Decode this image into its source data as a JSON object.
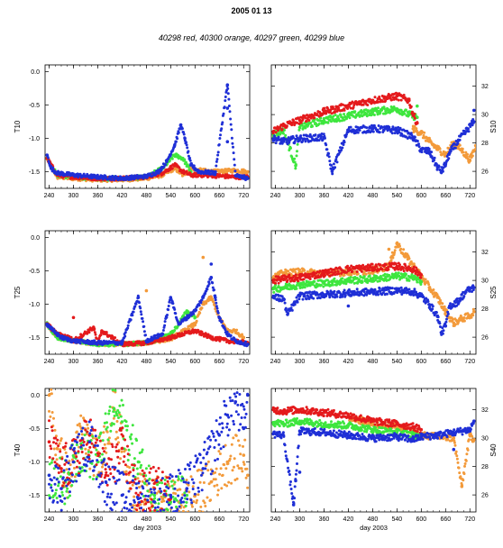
{
  "title": "2005 01 13",
  "subtitle": "40298 red, 40300 orange, 40297 green, 40299 blue",
  "series_colors": {
    "40298": "#e41a1c",
    "40300": "#f39a3a",
    "40297": "#3ee63e",
    "40299": "#1f2fd6"
  },
  "x_ticks": [
    "240",
    "300",
    "360",
    "420",
    "480",
    "540",
    "600",
    "660",
    "720"
  ],
  "x_label": "day 2003",
  "chart_data": [
    {
      "type": "scatter",
      "panel": "T10",
      "ylabel": "T10",
      "xlabel": "",
      "xlim": [
        230,
        735
      ],
      "ylim": [
        -1.75,
        0.1
      ],
      "yticks": [
        "0.0",
        "-0.5",
        "-1.0",
        "-1.5"
      ],
      "y_axis_side": "left",
      "series": [
        {
          "name": "40298",
          "x": [
            235,
            260,
            300,
            360,
            420,
            480,
            520,
            550,
            570,
            590,
            610,
            650,
            700,
            730
          ],
          "y": [
            -1.3,
            -1.55,
            -1.58,
            -1.6,
            -1.6,
            -1.58,
            -1.52,
            -1.4,
            -1.5,
            -1.55,
            -1.55,
            -1.56,
            -1.58,
            -1.58
          ]
        },
        {
          "name": "40300",
          "x": [
            235,
            260,
            300,
            360,
            420,
            480,
            520,
            550,
            570,
            590,
            610,
            650,
            700,
            730
          ],
          "y": [
            -1.3,
            -1.58,
            -1.6,
            -1.62,
            -1.62,
            -1.6,
            -1.55,
            -1.45,
            -1.55,
            -1.45,
            -1.48,
            -1.5,
            -1.48,
            -1.5
          ]
        },
        {
          "name": "40297",
          "x": [
            235,
            260,
            300,
            360,
            420,
            480,
            520,
            550,
            570,
            590
          ],
          "y": [
            -1.3,
            -1.55,
            -1.58,
            -1.6,
            -1.6,
            -1.58,
            -1.45,
            -1.25,
            -1.3,
            -1.5
          ]
        },
        {
          "name": "40299",
          "x": [
            235,
            245,
            260,
            300,
            360,
            420,
            480,
            510,
            530,
            550,
            565,
            575,
            590,
            610,
            650,
            700,
            730,
            680,
            680,
            680
          ],
          "y": [
            -1.25,
            -1.45,
            -1.52,
            -1.55,
            -1.58,
            -1.6,
            -1.57,
            -1.5,
            -1.35,
            -1.1,
            -0.8,
            -1.0,
            -1.4,
            -1.5,
            -1.52,
            -1.56,
            -1.6,
            -0.2,
            -0.55,
            -1.05
          ]
        }
      ]
    },
    {
      "type": "scatter",
      "panel": "S10",
      "ylabel": "S10",
      "xlabel": "",
      "xlim": [
        230,
        735
      ],
      "ylim": [
        24.8,
        33.5
      ],
      "yticks": [
        "32",
        "30",
        "28",
        "26"
      ],
      "y_axis_side": "right",
      "series": [
        {
          "name": "40298",
          "x": [
            235,
            260,
            300,
            360,
            420,
            480,
            540,
            570,
            580,
            590
          ],
          "y": [
            28.8,
            29.2,
            29.6,
            30.2,
            30.6,
            31,
            31.3,
            31,
            30,
            29.4
          ]
        },
        {
          "name": "40300",
          "x": [
            580,
            600,
            620,
            640,
            660,
            680,
            700,
            720,
            735
          ],
          "y": [
            29,
            28.7,
            28.1,
            27.6,
            27.2,
            28,
            27.5,
            26.8,
            27.8
          ]
        },
        {
          "name": "40297",
          "x": [
            235,
            260,
            300,
            360,
            420,
            480,
            540,
            570,
            590,
            590,
            290
          ],
          "y": [
            28.6,
            28.9,
            29.1,
            29.6,
            29.9,
            30.2,
            30.4,
            30,
            29.8,
            30.6,
            26.4
          ]
        },
        {
          "name": "40299",
          "x": [
            235,
            260,
            300,
            360,
            420,
            480,
            540,
            580,
            600,
            620,
            640,
            650,
            660,
            670,
            690,
            710,
            730,
            380,
            730
          ],
          "y": [
            28.3,
            28.1,
            28.3,
            28.4,
            28.9,
            29,
            28.9,
            28.4,
            27.5,
            27.4,
            26.3,
            26,
            26.5,
            27.3,
            28.1,
            28.8,
            29.5,
            26,
            30.3
          ]
        }
      ]
    },
    {
      "type": "scatter",
      "panel": "T25",
      "ylabel": "T25",
      "xlabel": "",
      "xlim": [
        230,
        735
      ],
      "ylim": [
        -1.75,
        0.1
      ],
      "yticks": [
        "0.0",
        "-0.5",
        "-1.0",
        "-1.5"
      ],
      "y_axis_side": "left",
      "series": [
        {
          "name": "40298",
          "x": [
            235,
            260,
            290,
            300,
            360,
            420,
            480,
            540,
            600,
            640,
            680,
            730,
            350,
            370,
            300
          ],
          "y": [
            -1.3,
            -1.45,
            -1.5,
            -1.55,
            -1.6,
            -1.6,
            -1.58,
            -1.5,
            -1.4,
            -1.5,
            -1.55,
            -1.58,
            -1.35,
            -1.4,
            -1.2
          ]
        },
        {
          "name": "40300",
          "x": [
            235,
            260,
            300,
            360,
            420,
            480,
            540,
            600,
            620,
            640,
            660,
            680,
            700,
            720,
            480,
            620
          ],
          "y": [
            -1.3,
            -1.5,
            -1.55,
            -1.6,
            -1.6,
            -1.58,
            -1.52,
            -1.3,
            -1.0,
            -0.9,
            -1.2,
            -1.4,
            -1.4,
            -1.5,
            -0.8,
            -0.3
          ]
        },
        {
          "name": "40297",
          "x": [
            235,
            260,
            300,
            360,
            420,
            480,
            520,
            540,
            560,
            580,
            600
          ],
          "y": [
            -1.3,
            -1.5,
            -1.55,
            -1.6,
            -1.6,
            -1.58,
            -1.5,
            -1.45,
            -1.3,
            -1.1,
            -1.2
          ]
        },
        {
          "name": "40299",
          "x": [
            235,
            250,
            270,
            300,
            360,
            420,
            480,
            520,
            560,
            600,
            620,
            640,
            650,
            660,
            680,
            700,
            730,
            540,
            640,
            460
          ],
          "y": [
            -1.3,
            -1.4,
            -1.5,
            -1.55,
            -1.58,
            -1.58,
            -1.55,
            -1.45,
            -1.3,
            -1.1,
            -0.9,
            -0.6,
            -0.9,
            -1.2,
            -1.45,
            -1.55,
            -1.6,
            -0.9,
            -0.4,
            -0.9
          ]
        }
      ]
    },
    {
      "type": "scatter",
      "panel": "S25",
      "ylabel": "S25",
      "xlabel": "",
      "xlim": [
        230,
        735
      ],
      "ylim": [
        24.8,
        33.5
      ],
      "yticks": [
        "32",
        "30",
        "28",
        "26"
      ],
      "y_axis_side": "right",
      "series": [
        {
          "name": "40298",
          "x": [
            235,
            260,
            300,
            360,
            420,
            480,
            540,
            580,
            600
          ],
          "y": [
            30,
            30.1,
            30.2,
            30.5,
            30.8,
            30.9,
            31,
            30.8,
            30.4
          ]
        },
        {
          "name": "40300",
          "x": [
            235,
            260,
            300,
            360,
            420,
            480,
            520,
            540,
            600,
            620,
            640,
            660,
            680,
            700,
            720,
            730,
            520,
            560
          ],
          "y": [
            30.2,
            30.5,
            30.6,
            30.5,
            30.6,
            30.7,
            31,
            32.6,
            30.3,
            29.5,
            28.8,
            27.8,
            27,
            27.3,
            27.5,
            27.8,
            32.2,
            31.8
          ]
        },
        {
          "name": "40297",
          "x": [
            235,
            260,
            300,
            360,
            420,
            480,
            540,
            580,
            600
          ],
          "y": [
            29.4,
            29.5,
            29.7,
            29.8,
            30,
            30.1,
            30.3,
            30.2,
            29.9
          ]
        },
        {
          "name": "40299",
          "x": [
            235,
            260,
            300,
            360,
            420,
            480,
            540,
            580,
            600,
            620,
            640,
            650,
            660,
            670,
            690,
            710,
            730,
            270,
            420
          ],
          "y": [
            28.8,
            28.7,
            28.9,
            29,
            29.1,
            29.2,
            29.3,
            29.2,
            28.9,
            28.3,
            27.5,
            26.3,
            26.8,
            28.2,
            28.5,
            29.2,
            29.5,
            27.6,
            28.2
          ]
        }
      ]
    },
    {
      "type": "scatter",
      "panel": "T40",
      "ylabel": "T40",
      "xlabel": "day 2003",
      "xlim": [
        230,
        735
      ],
      "ylim": [
        -1.75,
        0.1
      ],
      "yticks": [
        "0.0",
        "-0.5",
        "-1.0",
        "-1.5"
      ],
      "y_axis_side": "left",
      "series": [
        {
          "name": "40298",
          "x": [
            240,
            270,
            300,
            340,
            380,
            420,
            460,
            500,
            540
          ],
          "y": [
            -0.7,
            -1.1,
            -1.0,
            -0.6,
            -1.2,
            -0.8,
            -1.5,
            -1.4,
            -1.55
          ]
        },
        {
          "name": "40300",
          "x": [
            240,
            260,
            290,
            320,
            360,
            400,
            440,
            480,
            520,
            560,
            600,
            640,
            680,
            720,
            730
          ],
          "y": [
            0.0,
            -0.8,
            -1.3,
            -0.5,
            -1.0,
            -0.2,
            -1.4,
            -1.6,
            -1.55,
            -1.6,
            -1.5,
            -1.3,
            -1.0,
            -0.9,
            -1.2
          ]
        },
        {
          "name": "40297",
          "x": [
            240,
            280,
            320,
            360,
            400,
            420,
            460,
            500,
            540,
            580
          ],
          "y": [
            -1.2,
            -1.3,
            -0.8,
            -1.0,
            -0.2,
            -0.4,
            -1.0,
            -1.5,
            -1.6,
            -1.5
          ]
        },
        {
          "name": "40299",
          "x": [
            240,
            270,
            300,
            340,
            380,
            420,
            460,
            500,
            540,
            580,
            620,
            660,
            680,
            700,
            720,
            730
          ],
          "y": [
            -1.2,
            -1.4,
            -1.0,
            -0.7,
            -1.3,
            -1.5,
            -1.55,
            -1.6,
            -1.5,
            -1.4,
            -1.1,
            -0.6,
            -0.3,
            -0.1,
            -0.5,
            0.0
          ]
        }
      ]
    },
    {
      "type": "scatter",
      "panel": "S40",
      "ylabel": "S40",
      "xlabel": "day 2003",
      "xlim": [
        230,
        735
      ],
      "ylim": [
        24.8,
        33.5
      ],
      "yticks": [
        "32",
        "30",
        "28",
        "26"
      ],
      "y_axis_side": "right",
      "series": [
        {
          "name": "40298",
          "x": [
            235,
            260,
            300,
            360,
            420,
            480,
            540,
            580,
            600
          ],
          "y": [
            32,
            31.9,
            32,
            31.8,
            31.6,
            31.2,
            31,
            30.8,
            30.6
          ]
        },
        {
          "name": "40300",
          "x": [
            420,
            480,
            540,
            600,
            640,
            680,
            720,
            730,
            700
          ],
          "y": [
            31.5,
            31,
            30.8,
            30.2,
            30.1,
            30,
            30.2,
            29.9,
            26.6
          ]
        },
        {
          "name": "40297",
          "x": [
            235,
            260,
            300,
            360,
            420,
            480,
            540,
            580,
            600
          ],
          "y": [
            31.1,
            31,
            31.2,
            31,
            30.9,
            30.6,
            30.4,
            30.3,
            30
          ]
        },
        {
          "name": "40299",
          "x": [
            235,
            260,
            300,
            360,
            420,
            480,
            540,
            580,
            600,
            640,
            680,
            720,
            730,
            285,
            290,
            300,
            680,
            720
          ],
          "y": [
            30.3,
            30.2,
            30.5,
            30.4,
            30.2,
            30,
            30.1,
            29.9,
            30.1,
            30.2,
            30.4,
            30.6,
            31.2,
            25.3,
            27,
            27.6,
            29.2,
            30.5
          ]
        }
      ]
    }
  ]
}
